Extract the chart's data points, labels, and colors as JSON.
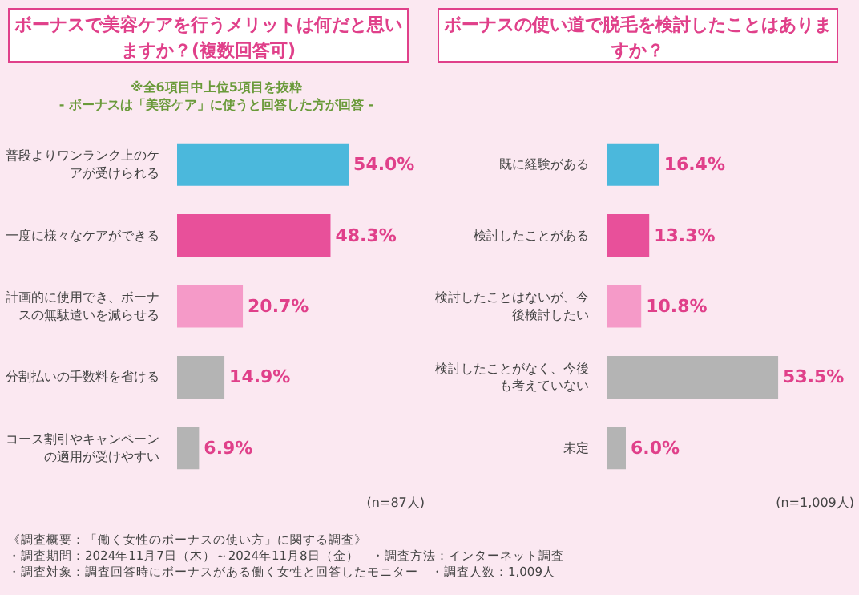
{
  "chart_data": [
    {
      "type": "bar",
      "orientation": "horizontal",
      "title": "ボーナスで美容ケアを行うメリットは何だと思いますか？(複数回答可)",
      "subtitle": "※全6項目中上位5項目を抜粋\n- ボーナスは「美容ケア」に使うと回答した方が回答 -",
      "categories": [
        "普段よりワンランク上のケアが受けられる",
        "一度に様々なケアができる",
        "計画的に使用でき、ボーナスの無駄遣いを減らせる",
        "分割払いの手数料を省ける",
        "コース割引やキャンペーンの適用が受けやすい"
      ],
      "values": [
        54.0,
        48.3,
        20.7,
        14.9,
        6.9
      ],
      "value_labels": [
        "54.0%",
        "48.3%",
        "20.7%",
        "14.9%",
        "6.9%"
      ],
      "colors": [
        "#4bb8dc",
        "#e8509a",
        "#f59ac8",
        "#b4b4b4",
        "#b4b4b4"
      ],
      "annotations": [
        "(n=87人)"
      ]
    },
    {
      "type": "bar",
      "orientation": "horizontal",
      "title": "ボーナスの使い道で脱毛を検討したことはありますか？",
      "categories": [
        "既に経験がある",
        "検討したことがある",
        "検討したことはないが、今後検討したい",
        "検討したことがなく、今後も考えていない",
        "未定"
      ],
      "values": [
        16.4,
        13.3,
        10.8,
        53.5,
        6.0
      ],
      "value_labels": [
        "16.4%",
        "13.3%",
        "10.8%",
        "53.5%",
        "6.0%"
      ],
      "colors": [
        "#4bb8dc",
        "#e8509a",
        "#f59ac8",
        "#b4b4b4",
        "#b4b4b4"
      ],
      "annotations": [
        "(n=1,009人)",
        "《調査概要：「働く女性のボーナスの使い方」に関する調査》",
        "・調査期間：2024年11月7日（木）～2024年11月8日（金）　・調査方法：インターネット調査",
        "・調査対象：調査回答時にボーナスがある働く女性と回答したモニター　・調査人数：1,009人"
      ]
    }
  ]
}
